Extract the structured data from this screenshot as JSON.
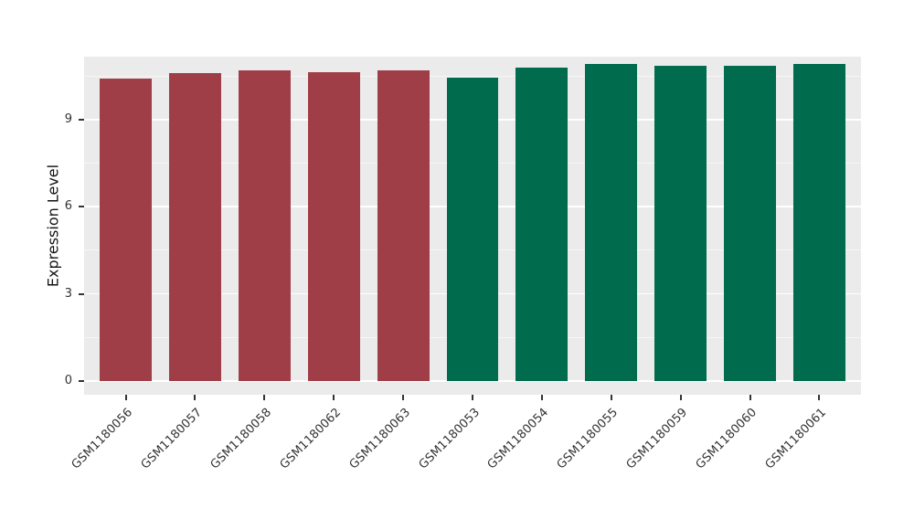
{
  "figure": {
    "background": "#FFFFFF"
  },
  "chart_data": {
    "type": "bar",
    "title": "",
    "xlabel": "",
    "ylabel": "Expression Level",
    "categories": [
      "GSM1180056",
      "GSM1180057",
      "GSM1180058",
      "GSM1180062",
      "GSM1180063",
      "GSM1180053",
      "GSM1180054",
      "GSM1180055",
      "GSM1180059",
      "GSM1180060",
      "GSM1180061"
    ],
    "values": [
      10.41,
      10.6,
      10.69,
      10.63,
      10.69,
      10.44,
      10.79,
      10.91,
      10.85,
      10.85,
      10.91
    ],
    "groups": [
      "group1",
      "group1",
      "group1",
      "group1",
      "group1",
      "group2",
      "group2",
      "group2",
      "group2",
      "group2",
      "group2"
    ],
    "group_colors": {
      "group1": "#A03E48",
      "group2": "#006B4D"
    },
    "yticks": [
      0,
      3,
      6,
      9
    ],
    "ylim": [
      0,
      11.16
    ],
    "grid": "major and minor white gridlines",
    "legend": "none",
    "panel_background": "#EBEBEB",
    "gridline_color": "#FFFFFF",
    "axis_text_color": "#333333"
  }
}
